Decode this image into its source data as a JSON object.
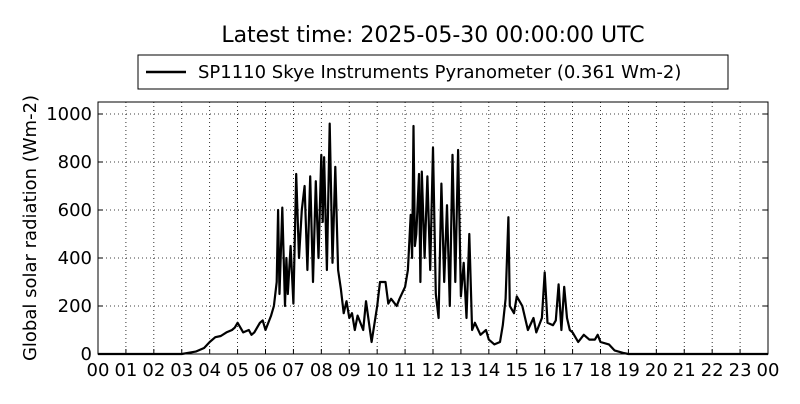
{
  "chart_data": {
    "type": "line",
    "title": "Latest time: 2025-05-30 00:00:00 UTC",
    "y_label": "Global solar radiation (Wm-2)",
    "legend_position": "upper center",
    "grid": true,
    "xlim": [
      0,
      24
    ],
    "ylim": [
      0,
      1050
    ],
    "xticks": [
      {
        "value": 0,
        "label": "00"
      },
      {
        "value": 1,
        "label": "01"
      },
      {
        "value": 2,
        "label": "02"
      },
      {
        "value": 3,
        "label": "03"
      },
      {
        "value": 4,
        "label": "04"
      },
      {
        "value": 5,
        "label": "05"
      },
      {
        "value": 6,
        "label": "06"
      },
      {
        "value": 7,
        "label": "07"
      },
      {
        "value": 8,
        "label": "08"
      },
      {
        "value": 9,
        "label": "09"
      },
      10,
      11,
      12,
      13,
      14,
      15,
      16,
      17,
      18,
      19,
      20,
      21,
      22,
      23,
      {
        "value": 24,
        "label": "00"
      }
    ],
    "yticks": [
      0,
      200,
      400,
      600,
      800,
      1000
    ],
    "x": [
      0,
      3,
      3.5,
      3.8,
      4,
      4.2,
      4.4,
      4.6,
      4.8,
      4.9,
      5,
      5.1,
      5.2,
      5.4,
      5.5,
      5.6,
      5.8,
      5.9,
      6,
      6.2,
      6.3,
      6.4,
      6.45,
      6.5,
      6.6,
      6.7,
      6.75,
      6.8,
      6.9,
      7,
      7.1,
      7.2,
      7.3,
      7.4,
      7.5,
      7.6,
      7.7,
      7.8,
      7.9,
      8,
      8.05,
      8.1,
      8.2,
      8.3,
      8.4,
      8.5,
      8.6,
      8.7,
      8.8,
      8.9,
      9,
      9.1,
      9.2,
      9.3,
      9.5,
      9.6,
      9.8,
      10,
      10.1,
      10.3,
      10.4,
      10.5,
      10.7,
      10.8,
      11,
      11.1,
      11.2,
      11.25,
      11.3,
      11.35,
      11.4,
      11.5,
      11.55,
      11.6,
      11.7,
      11.8,
      11.9,
      12,
      12.1,
      12.2,
      12.3,
      12.4,
      12.5,
      12.6,
      12.7,
      12.8,
      12.9,
      13,
      13.1,
      13.2,
      13.3,
      13.4,
      13.5,
      13.7,
      13.9,
      14,
      14.2,
      14.4,
      14.5,
      14.6,
      14.7,
      14.75,
      14.9,
      15,
      15.2,
      15.4,
      15.6,
      15.7,
      15.9,
      16,
      16.1,
      16.3,
      16.4,
      16.5,
      16.6,
      16.7,
      16.8,
      16.9,
      17,
      17.2,
      17.4,
      17.6,
      17.8,
      17.9,
      18,
      18.3,
      18.5,
      18.8,
      19,
      24
    ],
    "series": [
      {
        "name": "SP1110 Skye Instruments Pyranometer (0.361 Wm-2)",
        "color": "#000000",
        "values": [
          0,
          0,
          10,
          25,
          50,
          70,
          75,
          90,
          100,
          110,
          130,
          110,
          90,
          100,
          80,
          90,
          130,
          140,
          100,
          160,
          200,
          300,
          600,
          250,
          610,
          200,
          400,
          250,
          450,
          210,
          750,
          400,
          600,
          700,
          350,
          740,
          300,
          720,
          400,
          830,
          550,
          820,
          350,
          960,
          380,
          780,
          350,
          270,
          170,
          220,
          150,
          170,
          100,
          160,
          100,
          220,
          50,
          200,
          300,
          300,
          210,
          230,
          200,
          230,
          280,
          350,
          580,
          400,
          950,
          450,
          500,
          750,
          300,
          760,
          400,
          740,
          350,
          860,
          250,
          150,
          710,
          300,
          620,
          200,
          830,
          300,
          850,
          240,
          380,
          150,
          500,
          100,
          130,
          80,
          100,
          60,
          40,
          50,
          120,
          230,
          570,
          200,
          170,
          240,
          200,
          100,
          150,
          90,
          150,
          340,
          130,
          120,
          140,
          290,
          100,
          280,
          150,
          100,
          90,
          50,
          80,
          60,
          60,
          80,
          50,
          40,
          15,
          5,
          0,
          0
        ]
      }
    ]
  }
}
